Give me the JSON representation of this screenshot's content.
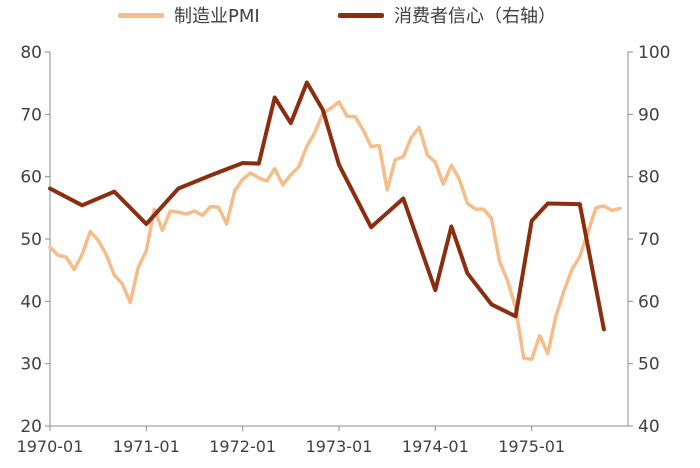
{
  "chart_data": {
    "type": "line",
    "legend_position": "top",
    "grid": false,
    "x_ticks": [
      "1970-01",
      "1971-01",
      "1972-01",
      "1973-01",
      "1974-01",
      "1975-01"
    ],
    "y_left": {
      "ylim": [
        20,
        80
      ],
      "ticks": [
        "20",
        "30",
        "40",
        "50",
        "60",
        "70",
        "80"
      ]
    },
    "y_right": {
      "ylim": [
        40,
        100
      ],
      "ticks": [
        "40",
        "50",
        "60",
        "70",
        "80",
        "90",
        "100"
      ]
    },
    "series": [
      {
        "name": "制造业PMI",
        "axis": "left",
        "color": "#f5bd8a",
        "x": [
          1970.0,
          1970.083,
          1970.167,
          1970.25,
          1970.333,
          1970.417,
          1970.5,
          1970.583,
          1970.667,
          1970.75,
          1970.833,
          1970.917,
          1971.0,
          1971.083,
          1971.167,
          1971.25,
          1971.333,
          1971.417,
          1971.5,
          1971.583,
          1971.667,
          1971.75,
          1971.833,
          1971.917,
          1972.0,
          1972.083,
          1972.167,
          1972.25,
          1972.333,
          1972.417,
          1972.5,
          1972.583,
          1972.667,
          1972.75,
          1972.833,
          1972.917,
          1973.0,
          1973.083,
          1973.167,
          1973.25,
          1973.333,
          1973.417,
          1973.5,
          1973.583,
          1973.667,
          1973.75,
          1973.833,
          1973.917,
          1974.0,
          1974.083,
          1974.167,
          1974.25,
          1974.333,
          1974.417,
          1974.5,
          1974.583,
          1974.667,
          1974.75,
          1974.833,
          1974.917,
          1975.0,
          1975.083,
          1975.167,
          1975.25,
          1975.333,
          1975.417,
          1975.5,
          1975.583,
          1975.667,
          1975.75,
          1975.833,
          1975.917
        ],
        "y": [
          48.7,
          47.4,
          47.1,
          45.1,
          47.5,
          51.2,
          49.8,
          47.5,
          44.2,
          42.8,
          39.8,
          45.5,
          48.1,
          54.8,
          51.4,
          54.5,
          54.3,
          54.0,
          54.5,
          53.8,
          55.2,
          55.1,
          52.4,
          57.7,
          59.6,
          60.6,
          59.8,
          59.3,
          61.3,
          58.7,
          60.3,
          61.6,
          64.9,
          67.1,
          70.2,
          71.0,
          72.0,
          69.7,
          69.6,
          67.5,
          64.8,
          65.0,
          57.9,
          62.7,
          63.2,
          66.3,
          67.9,
          63.5,
          62.3,
          58.8,
          61.8,
          59.6,
          55.7,
          54.8,
          54.8,
          53.3,
          46.4,
          43.3,
          39.0,
          30.9,
          30.7,
          34.5,
          31.6,
          37.6,
          41.5,
          45.1,
          47.2,
          51.0,
          55.0,
          55.3,
          54.6,
          54.9
        ]
      },
      {
        "name": "消费者信心（右轴）",
        "axis": "right",
        "color": "#8b2d0f",
        "x": [
          1970.0,
          1970.333,
          1970.667,
          1971.0,
          1971.333,
          1971.667,
          1972.0,
          1972.167,
          1972.333,
          1972.5,
          1972.667,
          1972.833,
          1973.0,
          1973.333,
          1973.667,
          1974.0,
          1974.167,
          1974.333,
          1974.583,
          1974.833,
          1975.0,
          1975.167,
          1975.5,
          1975.75
        ],
        "y": [
          78.1,
          75.4,
          77.6,
          72.4,
          78.1,
          80.2,
          82.2,
          82.1,
          92.7,
          88.6,
          95.1,
          90.7,
          81.9,
          71.9,
          76.5,
          61.8,
          72.0,
          64.5,
          59.5,
          57.6,
          72.9,
          75.7,
          75.6,
          55.5
        ]
      }
    ]
  }
}
